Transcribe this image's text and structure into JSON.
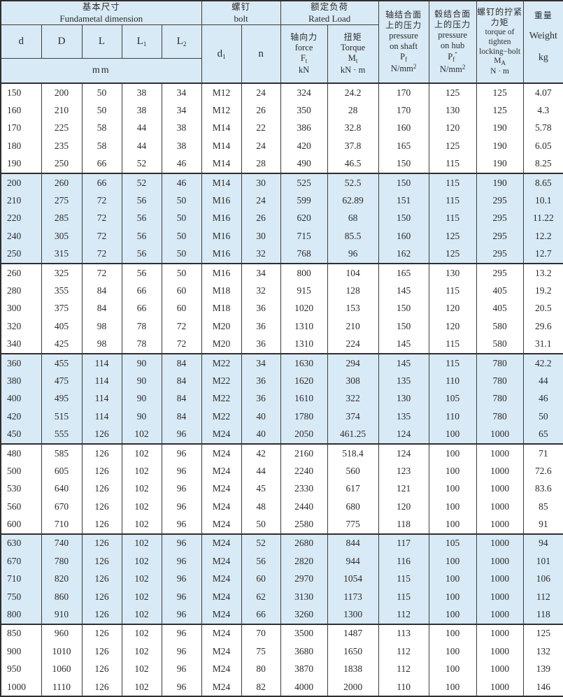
{
  "colors": {
    "band_blue": "#d8eaf5",
    "border_dark": "#2f2f2f",
    "grid_line": "#3d3d3d",
    "text": "#2b2b2b"
  },
  "table": {
    "header": {
      "basic_cn": "基本尺寸",
      "basic_en": "Fundametal dimension",
      "bolt_cn": "螺钉",
      "bolt_en": "bolt",
      "rated_cn": "额定负荷",
      "rated_en": "Rated Load",
      "unit_mm": "mm",
      "col_d": "d",
      "col_D": "D",
      "col_L": "L",
      "col_L1_main": "L",
      "col_L1_sub": "1",
      "col_L2_main": "L",
      "col_L2_sub": "2",
      "col_d1_main": "d",
      "col_d1_sub": "1",
      "col_n": "n",
      "force_cn": "轴向力",
      "force_en": "force",
      "force_sym_main": "F",
      "force_sym_sub": "t",
      "force_unit": "kN",
      "torque_cn": "扭矩",
      "torque_en": "Torque",
      "torque_sym_main": "M",
      "torque_sym_sub": "t",
      "torque_unit": "kN · m",
      "pshaft_cn1": "轴结合面",
      "pshaft_cn2": "上的压力",
      "pshaft_en1": "pressure",
      "pshaft_en2": "on shaft",
      "pshaft_sym_main": "P",
      "pshaft_sym_sub": "f",
      "pshaft_unit_main": "N/mm",
      "pshaft_unit_sup": "2",
      "phub_cn1": "毂结合面",
      "phub_cn2": "上的压力",
      "phub_en1": "pressure",
      "phub_en2": "on hub",
      "phub_sym_main": "P",
      "phub_sym_sub": "f",
      "phub_sym_sup": "″",
      "phub_unit_main": "N/mm",
      "phub_unit_sup": "2",
      "tighten_cn1": "螺钉的拧紧",
      "tighten_cn2": "力矩",
      "tighten_en1": "torque of",
      "tighten_en2": "tighten",
      "tighten_en3": "locking−bolt",
      "tighten_sym_main": "M",
      "tighten_sym_sub": "A",
      "tighten_unit": "N · m",
      "weight_cn": "重量",
      "weight_en": "Weight",
      "weight_unit": "kg"
    },
    "column_keys": [
      "d",
      "D",
      "L",
      "L1",
      "L2",
      "d1",
      "n",
      "axial-force-kN",
      "torque-kNm",
      "pressure-on-shaft",
      "pressure-on-hub",
      "tighten-torque",
      "weight-kg"
    ],
    "groups": [
      {
        "shaded": false,
        "rows": [
          [
            "150",
            "200",
            "50",
            "38",
            "34",
            "M12",
            "24",
            "324",
            "24.2",
            "170",
            "125",
            "125",
            "4.07"
          ],
          [
            "160",
            "210",
            "50",
            "38",
            "34",
            "M12",
            "26",
            "350",
            "28",
            "170",
            "130",
            "125",
            "4.3"
          ],
          [
            "170",
            "225",
            "58",
            "44",
            "38",
            "M14",
            "22",
            "386",
            "32.8",
            "160",
            "120",
            "190",
            "5.78"
          ],
          [
            "180",
            "235",
            "58",
            "44",
            "38",
            "M14",
            "24",
            "420",
            "37.8",
            "165",
            "125",
            "190",
            "6.05"
          ],
          [
            "190",
            "250",
            "66",
            "52",
            "46",
            "M14",
            "28",
            "490",
            "46.5",
            "150",
            "115",
            "190",
            "8.25"
          ]
        ]
      },
      {
        "shaded": true,
        "rows": [
          [
            "200",
            "260",
            "66",
            "52",
            "46",
            "M14",
            "30",
            "525",
            "52.5",
            "150",
            "115",
            "190",
            "8.65"
          ],
          [
            "210",
            "275",
            "72",
            "56",
            "50",
            "M16",
            "24",
            "599",
            "62.89",
            "151",
            "115",
            "295",
            "10.1"
          ],
          [
            "220",
            "285",
            "72",
            "56",
            "50",
            "M16",
            "26",
            "620",
            "68",
            "150",
            "115",
            "295",
            "11.22"
          ],
          [
            "240",
            "305",
            "72",
            "56",
            "50",
            "M16",
            "30",
            "715",
            "85.5",
            "160",
            "125",
            "295",
            "12.2"
          ],
          [
            "250",
            "315",
            "72",
            "56",
            "50",
            "M16",
            "32",
            "768",
            "96",
            "162",
            "125",
            "295",
            "12.7"
          ]
        ]
      },
      {
        "shaded": false,
        "rows": [
          [
            "260",
            "325",
            "72",
            "56",
            "50",
            "M16",
            "34",
            "800",
            "104",
            "165",
            "130",
            "295",
            "13.2"
          ],
          [
            "280",
            "355",
            "84",
            "66",
            "60",
            "M18",
            "32",
            "915",
            "128",
            "145",
            "115",
            "405",
            "19.2"
          ],
          [
            "300",
            "375",
            "84",
            "66",
            "60",
            "M18",
            "36",
            "1020",
            "153",
            "150",
            "120",
            "405",
            "20.5"
          ],
          [
            "320",
            "405",
            "98",
            "78",
            "72",
            "M20",
            "36",
            "1310",
            "210",
            "150",
            "120",
            "580",
            "29.6"
          ],
          [
            "340",
            "425",
            "98",
            "78",
            "72",
            "M20",
            "36",
            "1310",
            "224",
            "145",
            "115",
            "580",
            "31.1"
          ]
        ]
      },
      {
        "shaded": true,
        "rows": [
          [
            "360",
            "455",
            "114",
            "90",
            "84",
            "M22",
            "34",
            "1630",
            "294",
            "145",
            "115",
            "780",
            "42.2"
          ],
          [
            "380",
            "475",
            "114",
            "90",
            "84",
            "M22",
            "36",
            "1620",
            "308",
            "135",
            "110",
            "780",
            "44"
          ],
          [
            "400",
            "495",
            "114",
            "90",
            "84",
            "M22",
            "36",
            "1610",
            "322",
            "130",
            "105",
            "780",
            "46"
          ],
          [
            "420",
            "515",
            "114",
            "90",
            "84",
            "M22",
            "40",
            "1780",
            "374",
            "135",
            "110",
            "780",
            "50"
          ],
          [
            "450",
            "555",
            "126",
            "102",
            "96",
            "M24",
            "40",
            "2050",
            "461.25",
            "124",
            "100",
            "1000",
            "65"
          ]
        ]
      },
      {
        "shaded": false,
        "rows": [
          [
            "480",
            "585",
            "126",
            "102",
            "96",
            "M24",
            "42",
            "2160",
            "518.4",
            "124",
            "100",
            "1000",
            "71"
          ],
          [
            "500",
            "605",
            "126",
            "102",
            "96",
            "M24",
            "44",
            "2240",
            "560",
            "123",
            "100",
            "1000",
            "72.6"
          ],
          [
            "530",
            "640",
            "126",
            "102",
            "96",
            "M24",
            "45",
            "2330",
            "617",
            "121",
            "100",
            "1000",
            "83.6"
          ],
          [
            "560",
            "670",
            "126",
            "102",
            "96",
            "M24",
            "48",
            "2440",
            "680",
            "120",
            "100",
            "1000",
            "85"
          ],
          [
            "600",
            "710",
            "126",
            "102",
            "96",
            "M24",
            "50",
            "2580",
            "775",
            "118",
            "100",
            "1000",
            "91"
          ]
        ]
      },
      {
        "shaded": true,
        "rows": [
          [
            "630",
            "740",
            "126",
            "102",
            "96",
            "M24",
            "52",
            "2680",
            "844",
            "117",
            "105",
            "1000",
            "94"
          ],
          [
            "670",
            "780",
            "126",
            "102",
            "96",
            "M24",
            "56",
            "2820",
            "944",
            "116",
            "100",
            "1000",
            "101"
          ],
          [
            "710",
            "820",
            "126",
            "102",
            "96",
            "M24",
            "60",
            "2970",
            "1054",
            "115",
            "100",
            "1000",
            "106"
          ],
          [
            "750",
            "860",
            "126",
            "102",
            "96",
            "M24",
            "62",
            "3130",
            "1173",
            "115",
            "100",
            "1000",
            "112"
          ],
          [
            "800",
            "910",
            "126",
            "102",
            "96",
            "M24",
            "66",
            "3260",
            "1300",
            "112",
            "100",
            "1000",
            "118"
          ]
        ]
      },
      {
        "shaded": false,
        "rows": [
          [
            "850",
            "960",
            "126",
            "102",
            "96",
            "M24",
            "70",
            "3500",
            "1487",
            "113",
            "100",
            "1000",
            "125"
          ],
          [
            "900",
            "1010",
            "126",
            "102",
            "96",
            "M24",
            "75",
            "3680",
            "1650",
            "112",
            "100",
            "1000",
            "132"
          ],
          [
            "950",
            "1060",
            "126",
            "102",
            "96",
            "M24",
            "80",
            "3870",
            "1838",
            "112",
            "100",
            "1000",
            "139"
          ],
          [
            "1000",
            "1110",
            "126",
            "102",
            "96",
            "M24",
            "82",
            "4000",
            "2000",
            "110",
            "100",
            "1000",
            "146"
          ]
        ]
      }
    ]
  }
}
